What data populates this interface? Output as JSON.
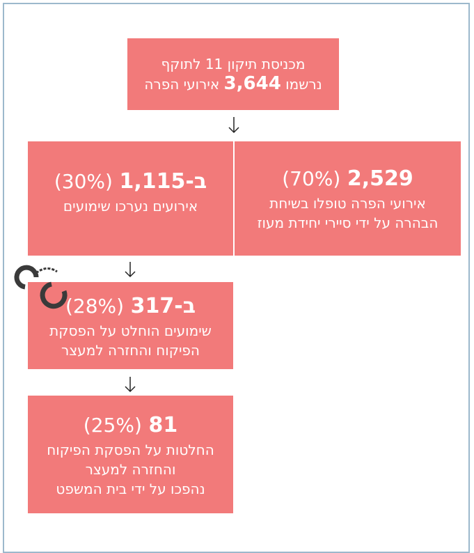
{
  "nodes": [
    {
      "line1": "מכניסת תיקון 11 לתוקף",
      "line2_pre": "נרשמו",
      "line2_bold": "3,644",
      "line2_post": "אירועי הפרה"
    },
    {
      "bold": "2,529",
      "percent": "(70%)",
      "lines": [
        "אירועי הפרה טופלו בשיחת",
        "הבהרה על ידי סיירי יחידת מעוז"
      ]
    },
    {
      "bold": "ב-1,115",
      "percent": "(30%)",
      "lines": [
        "אירועים נערכו שימועים"
      ]
    },
    {
      "bold": "ב-317",
      "percent": "(28%)",
      "lines": [
        "שימועים הוחלט על הפסקת",
        "הפיקוח והחזרה למעצר"
      ]
    },
    {
      "bold": "81",
      "percent": "(25%)",
      "lines": [
        "החלטות על הפסקת הפיקוח",
        "והחזרה למעצר",
        "נהפכו על ידי בית המשפט"
      ]
    }
  ]
}
